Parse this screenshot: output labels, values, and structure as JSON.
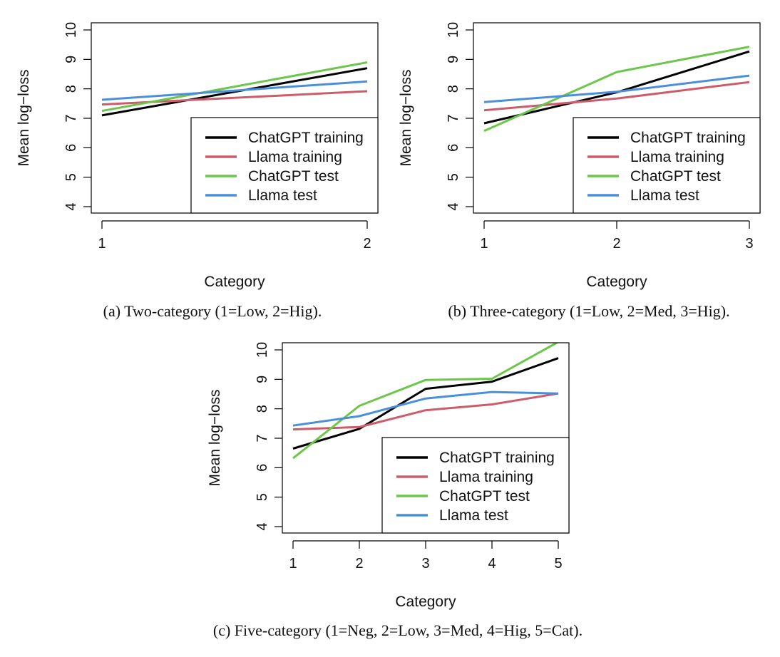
{
  "series_colors": {
    "chatgpt_training": "#000000",
    "llama_training": "#cd5c6a",
    "chatgpt_test": "#6cc64a",
    "llama_test": "#4a8fdc"
  },
  "chart_data": [
    {
      "type": "line",
      "caption": "(a) Two-category (1=Low, 2=Hig).",
      "xlabel": "Category",
      "ylabel": "Mean log−loss",
      "x": [
        1,
        2
      ],
      "x_ticks": [
        "1",
        "2"
      ],
      "xlim": [
        1,
        2
      ],
      "y_ticks": [
        "4",
        "5",
        "6",
        "7",
        "8",
        "9",
        "10"
      ],
      "ylim": [
        4,
        10
      ],
      "legend_position": "bottom-right",
      "series": [
        {
          "key": "chatgpt_training",
          "name": "ChatGPT training",
          "values": [
            7.1,
            8.7
          ]
        },
        {
          "key": "llama_training",
          "name": "Llama training",
          "values": [
            7.47,
            7.92
          ]
        },
        {
          "key": "chatgpt_test",
          "name": "ChatGPT test",
          "values": [
            7.25,
            8.9
          ]
        },
        {
          "key": "llama_test",
          "name": "Llama test",
          "values": [
            7.63,
            8.25
          ]
        }
      ]
    },
    {
      "type": "line",
      "caption": "(b) Three-category (1=Low, 2=Med, 3=Hig).",
      "xlabel": "Category",
      "ylabel": "Mean log−loss",
      "x": [
        1,
        2,
        3
      ],
      "x_ticks": [
        "1",
        "2",
        "3"
      ],
      "xlim": [
        1,
        3
      ],
      "y_ticks": [
        "4",
        "5",
        "6",
        "7",
        "8",
        "9",
        "10"
      ],
      "ylim": [
        4,
        10
      ],
      "legend_position": "bottom-right",
      "series": [
        {
          "key": "chatgpt_training",
          "name": "ChatGPT training",
          "values": [
            6.83,
            7.88,
            9.27
          ]
        },
        {
          "key": "llama_training",
          "name": "Llama training",
          "values": [
            7.27,
            7.67,
            8.23
          ]
        },
        {
          "key": "chatgpt_test",
          "name": "ChatGPT test",
          "values": [
            6.57,
            8.57,
            9.43
          ]
        },
        {
          "key": "llama_test",
          "name": "Llama test",
          "values": [
            7.55,
            7.9,
            8.45
          ]
        }
      ]
    },
    {
      "type": "line",
      "caption": "(c) Five-category (1=Neg, 2=Low, 3=Med, 4=Hig, 5=Cat).",
      "xlabel": "Category",
      "ylabel": "Mean log−loss",
      "x": [
        1,
        2,
        3,
        4,
        5
      ],
      "x_ticks": [
        "1",
        "2",
        "3",
        "4",
        "5"
      ],
      "xlim": [
        1,
        5
      ],
      "y_ticks": [
        "4",
        "5",
        "6",
        "7",
        "8",
        "9",
        "10"
      ],
      "ylim": [
        4,
        10
      ],
      "legend_position": "bottom-right",
      "series": [
        {
          "key": "chatgpt_training",
          "name": "ChatGPT training",
          "values": [
            6.65,
            7.32,
            8.68,
            8.92,
            9.72
          ]
        },
        {
          "key": "llama_training",
          "name": "Llama training",
          "values": [
            7.3,
            7.38,
            7.95,
            8.15,
            8.52
          ]
        },
        {
          "key": "chatgpt_test",
          "name": "ChatGPT test",
          "values": [
            6.32,
            8.1,
            8.98,
            9.02,
            10.27
          ]
        },
        {
          "key": "llama_test",
          "name": "Llama test",
          "values": [
            7.43,
            7.75,
            8.35,
            8.57,
            8.52
          ]
        }
      ]
    }
  ]
}
